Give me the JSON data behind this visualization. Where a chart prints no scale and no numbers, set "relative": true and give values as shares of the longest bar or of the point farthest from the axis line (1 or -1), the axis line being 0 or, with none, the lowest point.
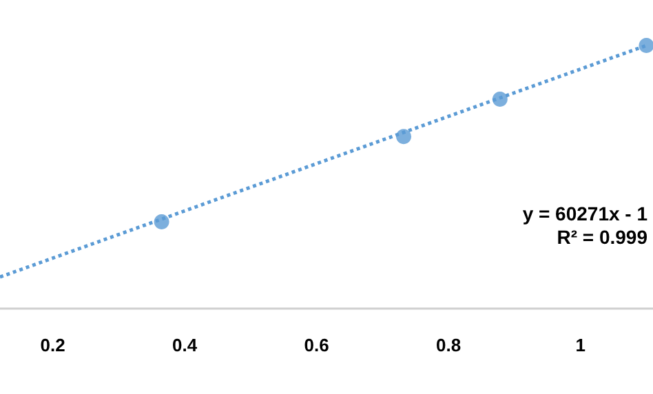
{
  "chart_data": {
    "type": "scatter",
    "relative": true,
    "marker": "circle",
    "grid": false,
    "xlim": [
      0.12,
      1.11
    ],
    "xticks": [
      0.2,
      0.4,
      0.6,
      0.8,
      1
    ],
    "annotations": [
      "y = 60271x - 1",
      "R² = 0.999"
    ],
    "series": [
      {
        "color": "#5b9bd5",
        "x": [
          0.365,
          0.732,
          0.878,
          1.1
        ],
        "values": [
          0.33,
          0.654,
          0.796,
          1
        ]
      },
      {
        "type": "line",
        "line_style": "dotted",
        "marker": "none",
        "color": "#5b9bd5",
        "x": [
          0.12,
          1.1
        ],
        "values": [
          0.12,
          1
        ]
      }
    ]
  }
}
